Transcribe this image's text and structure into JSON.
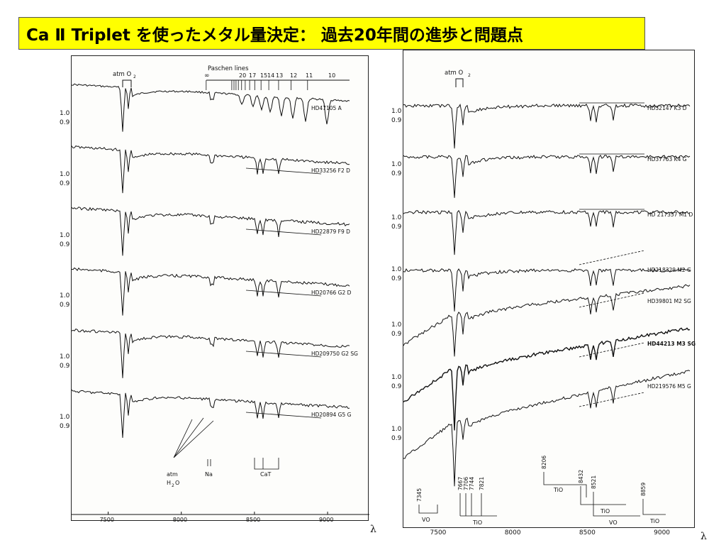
{
  "title": "Ca Ⅱ Triplet を使ったメタル量決定： 過去20年間の進歩と問題点",
  "left_figure": {
    "top_labels": {
      "atm": "atm O",
      "atm_sub": "2",
      "paschen": "Paschen lines",
      "infinity": "∞"
    },
    "paschen_numbers": [
      "20",
      "17",
      "15",
      "14",
      "13",
      "12",
      "11",
      "10"
    ],
    "stars": [
      "HD47105 A",
      "HD33256 F2 D",
      "HD22879 F9 D",
      "HD20766 G2 D",
      "HD209750 G2 SG",
      "HD20894 G5 G"
    ],
    "y_ticks": [
      "1.0",
      "0.9"
    ],
    "bottom_labels": {
      "atm_h2o_1": "atm",
      "atm_h2o_2": "H",
      "atm_h2o_sub": "2",
      "atm_h2o_3": "O",
      "na": "Na",
      "cat": "CaT"
    },
    "x_ticks": [
      "7500",
      "8000",
      "8500",
      "9000"
    ],
    "x_symbol": "λ"
  },
  "right_figure": {
    "top_labels": {
      "atm": "atm O",
      "atm_sub": "2"
    },
    "stars": [
      "HD32147 K3 D",
      "HD37763 K4 G",
      "HD 217357 M1 D",
      "HD218329 M2 G",
      "HD39801 M2 SG",
      "HD44213 M3 SG",
      "HD219576 M5 G"
    ],
    "y_ticks": [
      "1.0",
      "0.9"
    ],
    "band_labels": [
      "7345",
      "7667",
      "7706",
      "7744",
      "7821",
      "8206",
      "8432",
      "8521",
      "8859"
    ],
    "band_names": [
      "VO",
      "TiO",
      "TiO",
      "TiO",
      "VO",
      "TiO"
    ],
    "x_ticks": [
      "7500",
      "8000",
      "8500",
      "9000"
    ],
    "x_symbol": "λ"
  }
}
